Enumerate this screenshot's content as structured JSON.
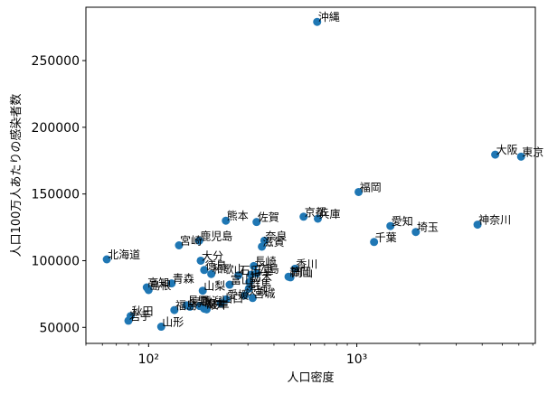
{
  "chart_data": {
    "type": "scatter",
    "title": "",
    "xlabel": "人口密度",
    "ylabel": "人口100万人あたりの感染者数",
    "xscale": "log",
    "xlim": [
      50,
      7200
    ],
    "ylim": [
      38000,
      290000
    ],
    "x_ticks": [
      {
        "value": 100,
        "label": "10²"
      },
      {
        "value": 1000,
        "label": "10³"
      }
    ],
    "y_ticks": [
      50000,
      100000,
      150000,
      200000,
      250000
    ],
    "marker_color": "#1f77b4",
    "grid": false,
    "legend": "none",
    "points": [
      {
        "label": "沖縄",
        "x": 645,
        "y": 279000
      },
      {
        "label": "大阪",
        "x": 4620,
        "y": 179500
      },
      {
        "label": "東京",
        "x": 6150,
        "y": 178000
      },
      {
        "label": "福岡",
        "x": 1020,
        "y": 151500
      },
      {
        "label": "熊本",
        "x": 235,
        "y": 130000
      },
      {
        "label": "佐賀",
        "x": 330,
        "y": 129000
      },
      {
        "label": "京都",
        "x": 555,
        "y": 133000
      },
      {
        "label": "兵庫",
        "x": 650,
        "y": 131500
      },
      {
        "label": "神奈川",
        "x": 3800,
        "y": 127000
      },
      {
        "label": "愛知",
        "x": 1450,
        "y": 126000
      },
      {
        "label": "埼玉",
        "x": 1920,
        "y": 121500
      },
      {
        "label": "千葉",
        "x": 1210,
        "y": 114000
      },
      {
        "label": "奈良",
        "x": 360,
        "y": 115000
      },
      {
        "label": "滋賀",
        "x": 350,
        "y": 110500
      },
      {
        "label": "鹿児島",
        "x": 175,
        "y": 115000
      },
      {
        "label": "宮崎",
        "x": 140,
        "y": 111500
      },
      {
        "label": "北海道",
        "x": 63,
        "y": 101000
      },
      {
        "label": "大分",
        "x": 178,
        "y": 100000
      },
      {
        "label": "長崎",
        "x": 320,
        "y": 96000
      },
      {
        "label": "香川",
        "x": 505,
        "y": 94000
      },
      {
        "label": "徳島",
        "x": 185,
        "y": 93000
      },
      {
        "label": "和歌山",
        "x": 200,
        "y": 90000
      },
      {
        "label": "三重",
        "x": 310,
        "y": 89500
      },
      {
        "label": "石川",
        "x": 270,
        "y": 89000
      },
      {
        "label": "広島",
        "x": 330,
        "y": 90500
      },
      {
        "label": "静岡",
        "x": 470,
        "y": 88000
      },
      {
        "label": "岡山",
        "x": 480,
        "y": 87500
      },
      {
        "label": "高知",
        "x": 98,
        "y": 80000
      },
      {
        "label": "島根",
        "x": 100,
        "y": 78000
      },
      {
        "label": "青森",
        "x": 129,
        "y": 83000
      },
      {
        "label": "栃木",
        "x": 305,
        "y": 84000
      },
      {
        "label": "富山",
        "x": 245,
        "y": 82000
      },
      {
        "label": "山梨",
        "x": 182,
        "y": 77500
      },
      {
        "label": "群馬",
        "x": 303,
        "y": 79000
      },
      {
        "label": "宮城",
        "x": 316,
        "y": 72000
      },
      {
        "label": "山口",
        "x": 222,
        "y": 68000
      },
      {
        "label": "鳥取",
        "x": 158,
        "y": 65500
      },
      {
        "label": "新潟",
        "x": 176,
        "y": 66000
      },
      {
        "label": "長野",
        "x": 152,
        "y": 66500
      },
      {
        "label": "福井",
        "x": 185,
        "y": 64000
      },
      {
        "label": "茨城",
        "x": 290,
        "y": 74000
      },
      {
        "label": "愛媛",
        "x": 236,
        "y": 71000
      },
      {
        "label": "岐阜",
        "x": 190,
        "y": 63500
      },
      {
        "label": "福島",
        "x": 133,
        "y": 63000
      },
      {
        "label": "秋田",
        "x": 82,
        "y": 58500
      },
      {
        "label": "岩手",
        "x": 80,
        "y": 55000
      },
      {
        "label": "山形",
        "x": 115,
        "y": 50500
      }
    ]
  }
}
